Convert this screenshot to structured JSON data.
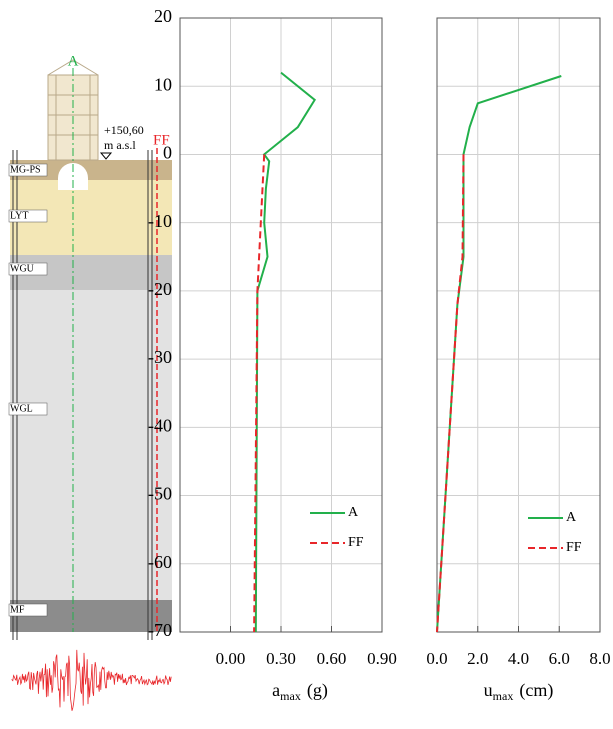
{
  "schematic": {
    "axis_label": "A",
    "free_field_label": "FF",
    "elevation": "+150,60",
    "elevation_unit": "m a.s.l",
    "layers": [
      "MG-PS",
      "LYT",
      "WGU",
      "WGL",
      "MF"
    ]
  },
  "chart_data": [
    {
      "type": "line",
      "xlabel": {
        "main": "a",
        "sub": "max",
        "unit": "(g)"
      },
      "xlim": [
        -0.3,
        0.9
      ],
      "xticks": [
        {
          "value": 0,
          "label": "0.00"
        },
        {
          "value": 0.3,
          "label": "0.30"
        },
        {
          "value": 0.6,
          "label": "0.60"
        },
        {
          "value": 0.9,
          "label": "0.90"
        }
      ],
      "ylim": [
        -70,
        20
      ],
      "yticks": [
        -70,
        -60,
        -50,
        -40,
        -30,
        -20,
        -10,
        0,
        10,
        20
      ],
      "grid": true,
      "series": [
        {
          "name": "A",
          "color": "#22b04b",
          "dash": false,
          "values": [
            0.3,
            0.5,
            0.4,
            0.2,
            0.23,
            0.21,
            0.2,
            0.22,
            0.16,
            0.15
          ],
          "depth": [
            12,
            8,
            4,
            0,
            -1,
            -5,
            -10,
            -15,
            -20,
            -70
          ]
        },
        {
          "name": "FF",
          "color": "#e8262a",
          "dash": true,
          "values": [
            0.2,
            0.18,
            0.16,
            0.14
          ],
          "depth": [
            0,
            -10,
            -20,
            -70
          ]
        }
      ]
    },
    {
      "type": "line",
      "xlabel": {
        "main": "u",
        "sub": "max",
        "unit": "(cm)"
      },
      "xlim": [
        0,
        8
      ],
      "xticks": [
        {
          "value": 0,
          "label": "0.0"
        },
        {
          "value": 2,
          "label": "2.0"
        },
        {
          "value": 4,
          "label": "4.0"
        },
        {
          "value": 6,
          "label": "6.0"
        },
        {
          "value": 8,
          "label": "8.0"
        }
      ],
      "ylim": [
        -70,
        20
      ],
      "yticks": [
        -70,
        -60,
        -50,
        -40,
        -30,
        -20,
        -10,
        0,
        10,
        20
      ],
      "grid": true,
      "series": [
        {
          "name": "A",
          "color": "#22b04b",
          "dash": false,
          "values": [
            6.1,
            2.0,
            1.6,
            1.3,
            1.3,
            1.0,
            0
          ],
          "depth": [
            11.5,
            7.5,
            4,
            0,
            -15,
            -22,
            -70
          ]
        },
        {
          "name": "FF",
          "color": "#e8262a",
          "dash": true,
          "values": [
            1.3,
            1.25,
            1.0,
            0
          ],
          "depth": [
            0,
            -15,
            -22,
            -70
          ]
        }
      ]
    }
  ]
}
